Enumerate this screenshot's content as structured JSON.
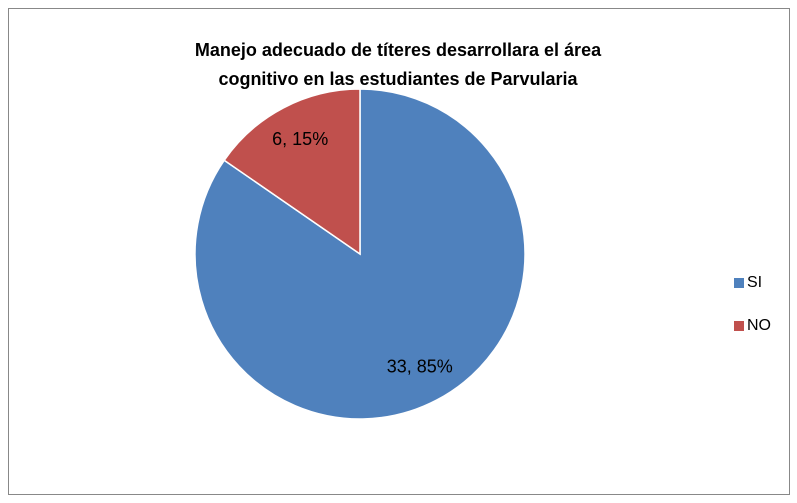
{
  "chart_data": {
    "type": "pie",
    "title": [
      "Manejo adecuado de títeres desarrollara el área",
      "cognitivo en las estudiantes de Parvularia"
    ],
    "categories": [
      "SI",
      "NO"
    ],
    "values": [
      33,
      6
    ],
    "value_labels": [
      "33, 85%",
      "6, 15%"
    ],
    "colors": [
      "#4f81bd",
      "#c0504d"
    ],
    "legend": "right"
  }
}
